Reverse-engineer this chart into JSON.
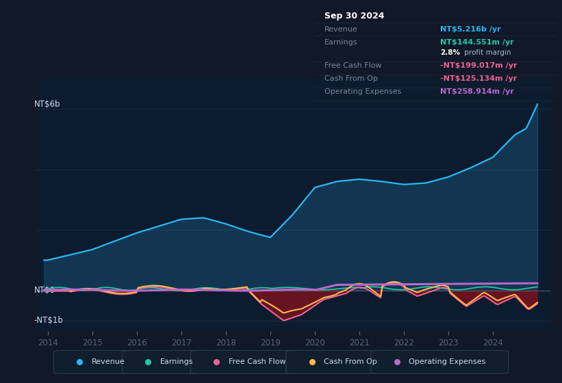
{
  "background_color": "#111827",
  "chart_bg_color": "#0d1b2e",
  "ylabel_top": "NT$6b",
  "ylabel_zero": "NT$0",
  "ylabel_bot": "-NT$1b",
  "revenue_color": "#29b6f6",
  "earnings_color": "#26c6a6",
  "fcf_color": "#f06292",
  "cashop_color": "#ffb74d",
  "opex_color": "#ba68c8",
  "fill_neg_color": "#6b1520",
  "grid_color": "#1e3048",
  "zero_line_color": "#4a5568",
  "legend_items": [
    {
      "label": "Revenue",
      "color": "#29b6f6"
    },
    {
      "label": "Earnings",
      "color": "#26c6a6"
    },
    {
      "label": "Free Cash Flow",
      "color": "#f06292"
    },
    {
      "label": "Cash From Op",
      "color": "#ffb74d"
    },
    {
      "label": "Operating Expenses",
      "color": "#ba68c8"
    }
  ],
  "tooltip": {
    "date": "Sep 30 2024",
    "revenue_label": "Revenue",
    "revenue_val": "NT$5.216b /yr",
    "revenue_color": "#29b6f6",
    "earnings_label": "Earnings",
    "earnings_val": "NT$144.551m /yr",
    "earnings_color": "#26c6a6",
    "margin_bold": "2.8%",
    "margin_rest": " profit margin",
    "fcf_label": "Free Cash Flow",
    "fcf_val": "-NT$199.017m /yr",
    "fcf_color": "#f06292",
    "cashop_label": "Cash From Op",
    "cashop_val": "-NT$125.134m /yr",
    "cashop_color": "#f06292",
    "opex_label": "Operating Expenses",
    "opex_val": "NT$258.914m /yr",
    "opex_color": "#ba68c8"
  }
}
